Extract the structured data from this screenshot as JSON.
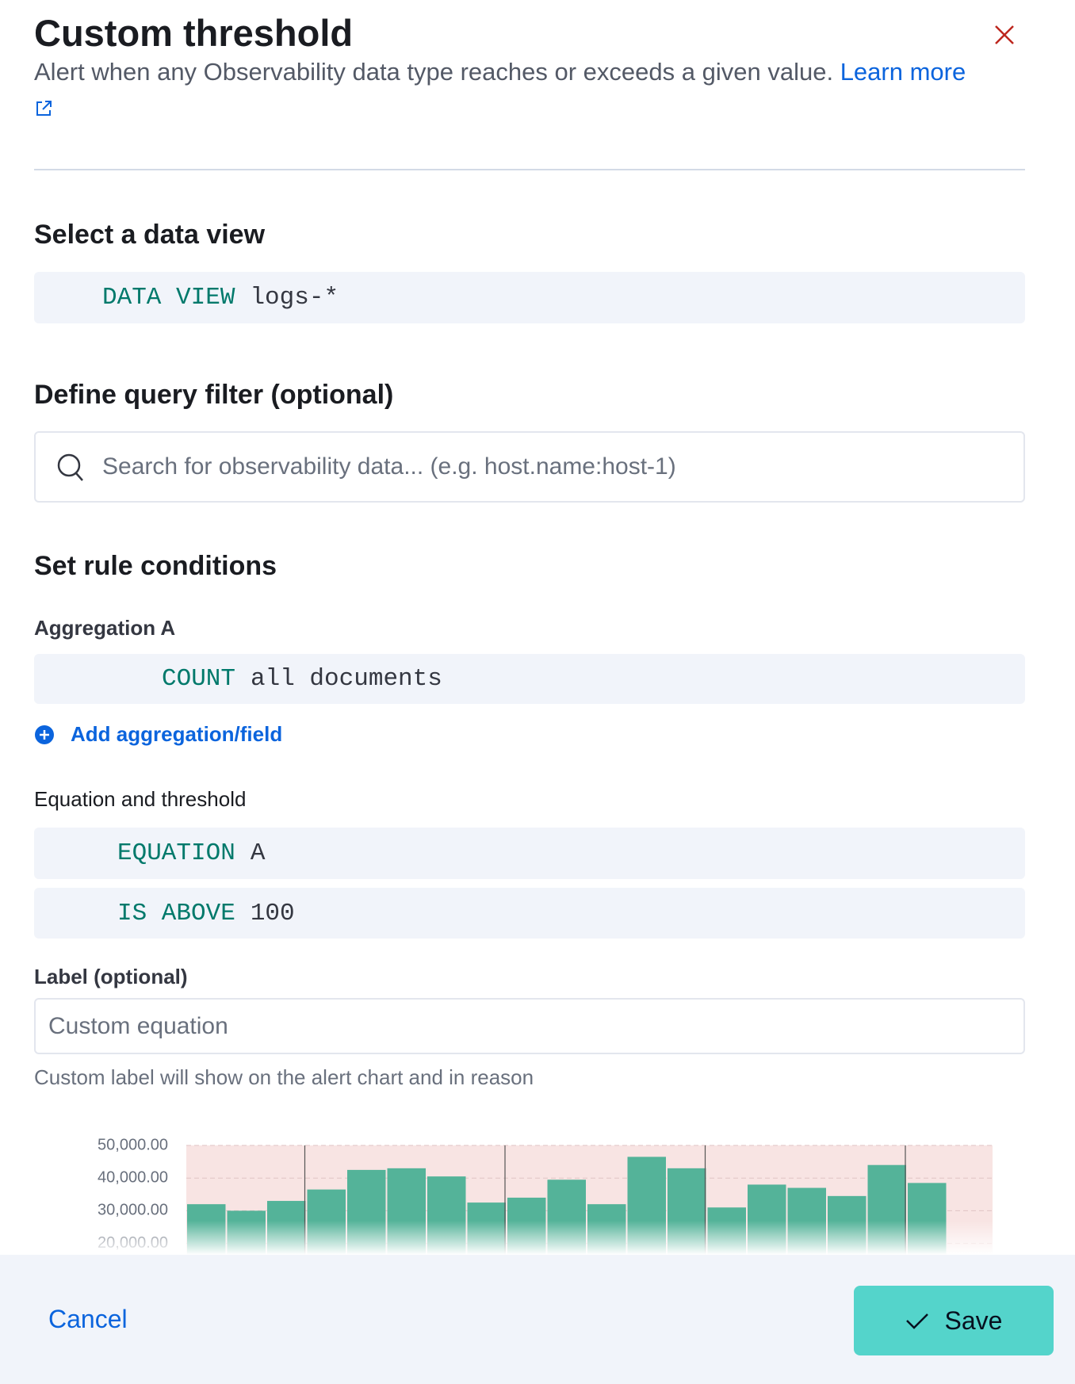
{
  "header": {
    "title": "Custom threshold",
    "description": "Alert when any Observability data type reaches or exceeds a given value.",
    "learn_more": "Learn more"
  },
  "data_view": {
    "heading": "Select a data view",
    "keyword": "DATA VIEW",
    "value": "logs-*"
  },
  "query_filter": {
    "heading": "Define query filter (optional)",
    "placeholder": "Search for observability data... (e.g. host.name:host-1)"
  },
  "rule_conditions": {
    "heading": "Set rule conditions",
    "aggregation": {
      "label": "Aggregation A",
      "keyword": "COUNT",
      "value": "all documents"
    },
    "add_aggregation": "Add aggregation/field",
    "equation": {
      "label": "Equation and threshold",
      "keyword": "EQUATION",
      "value": "A"
    },
    "threshold": {
      "keyword": "IS ABOVE",
      "value": "100"
    },
    "custom_label": {
      "label": "Label (optional)",
      "placeholder": "Custom equation",
      "help": "Custom label will show on the alert chart and in reason"
    }
  },
  "chart_data": {
    "type": "bar",
    "color": "#54b399",
    "grid": true,
    "values": [
      32000,
      30000,
      33000,
      36500,
      42500,
      43000,
      40500,
      32500,
      34000,
      39500,
      32000,
      46500,
      43000,
      31000,
      38000,
      37000,
      34500,
      44000,
      38500
    ],
    "ylim": [
      0,
      50000
    ],
    "yticks": [
      {
        "value": 20000,
        "label": "20,000.00"
      },
      {
        "value": 30000,
        "label": "30,000.00"
      },
      {
        "value": 40000,
        "label": "40,000.00"
      },
      {
        "value": 50000,
        "label": "50,000.00"
      }
    ]
  },
  "footer": {
    "cancel": "Cancel",
    "save": "Save"
  }
}
